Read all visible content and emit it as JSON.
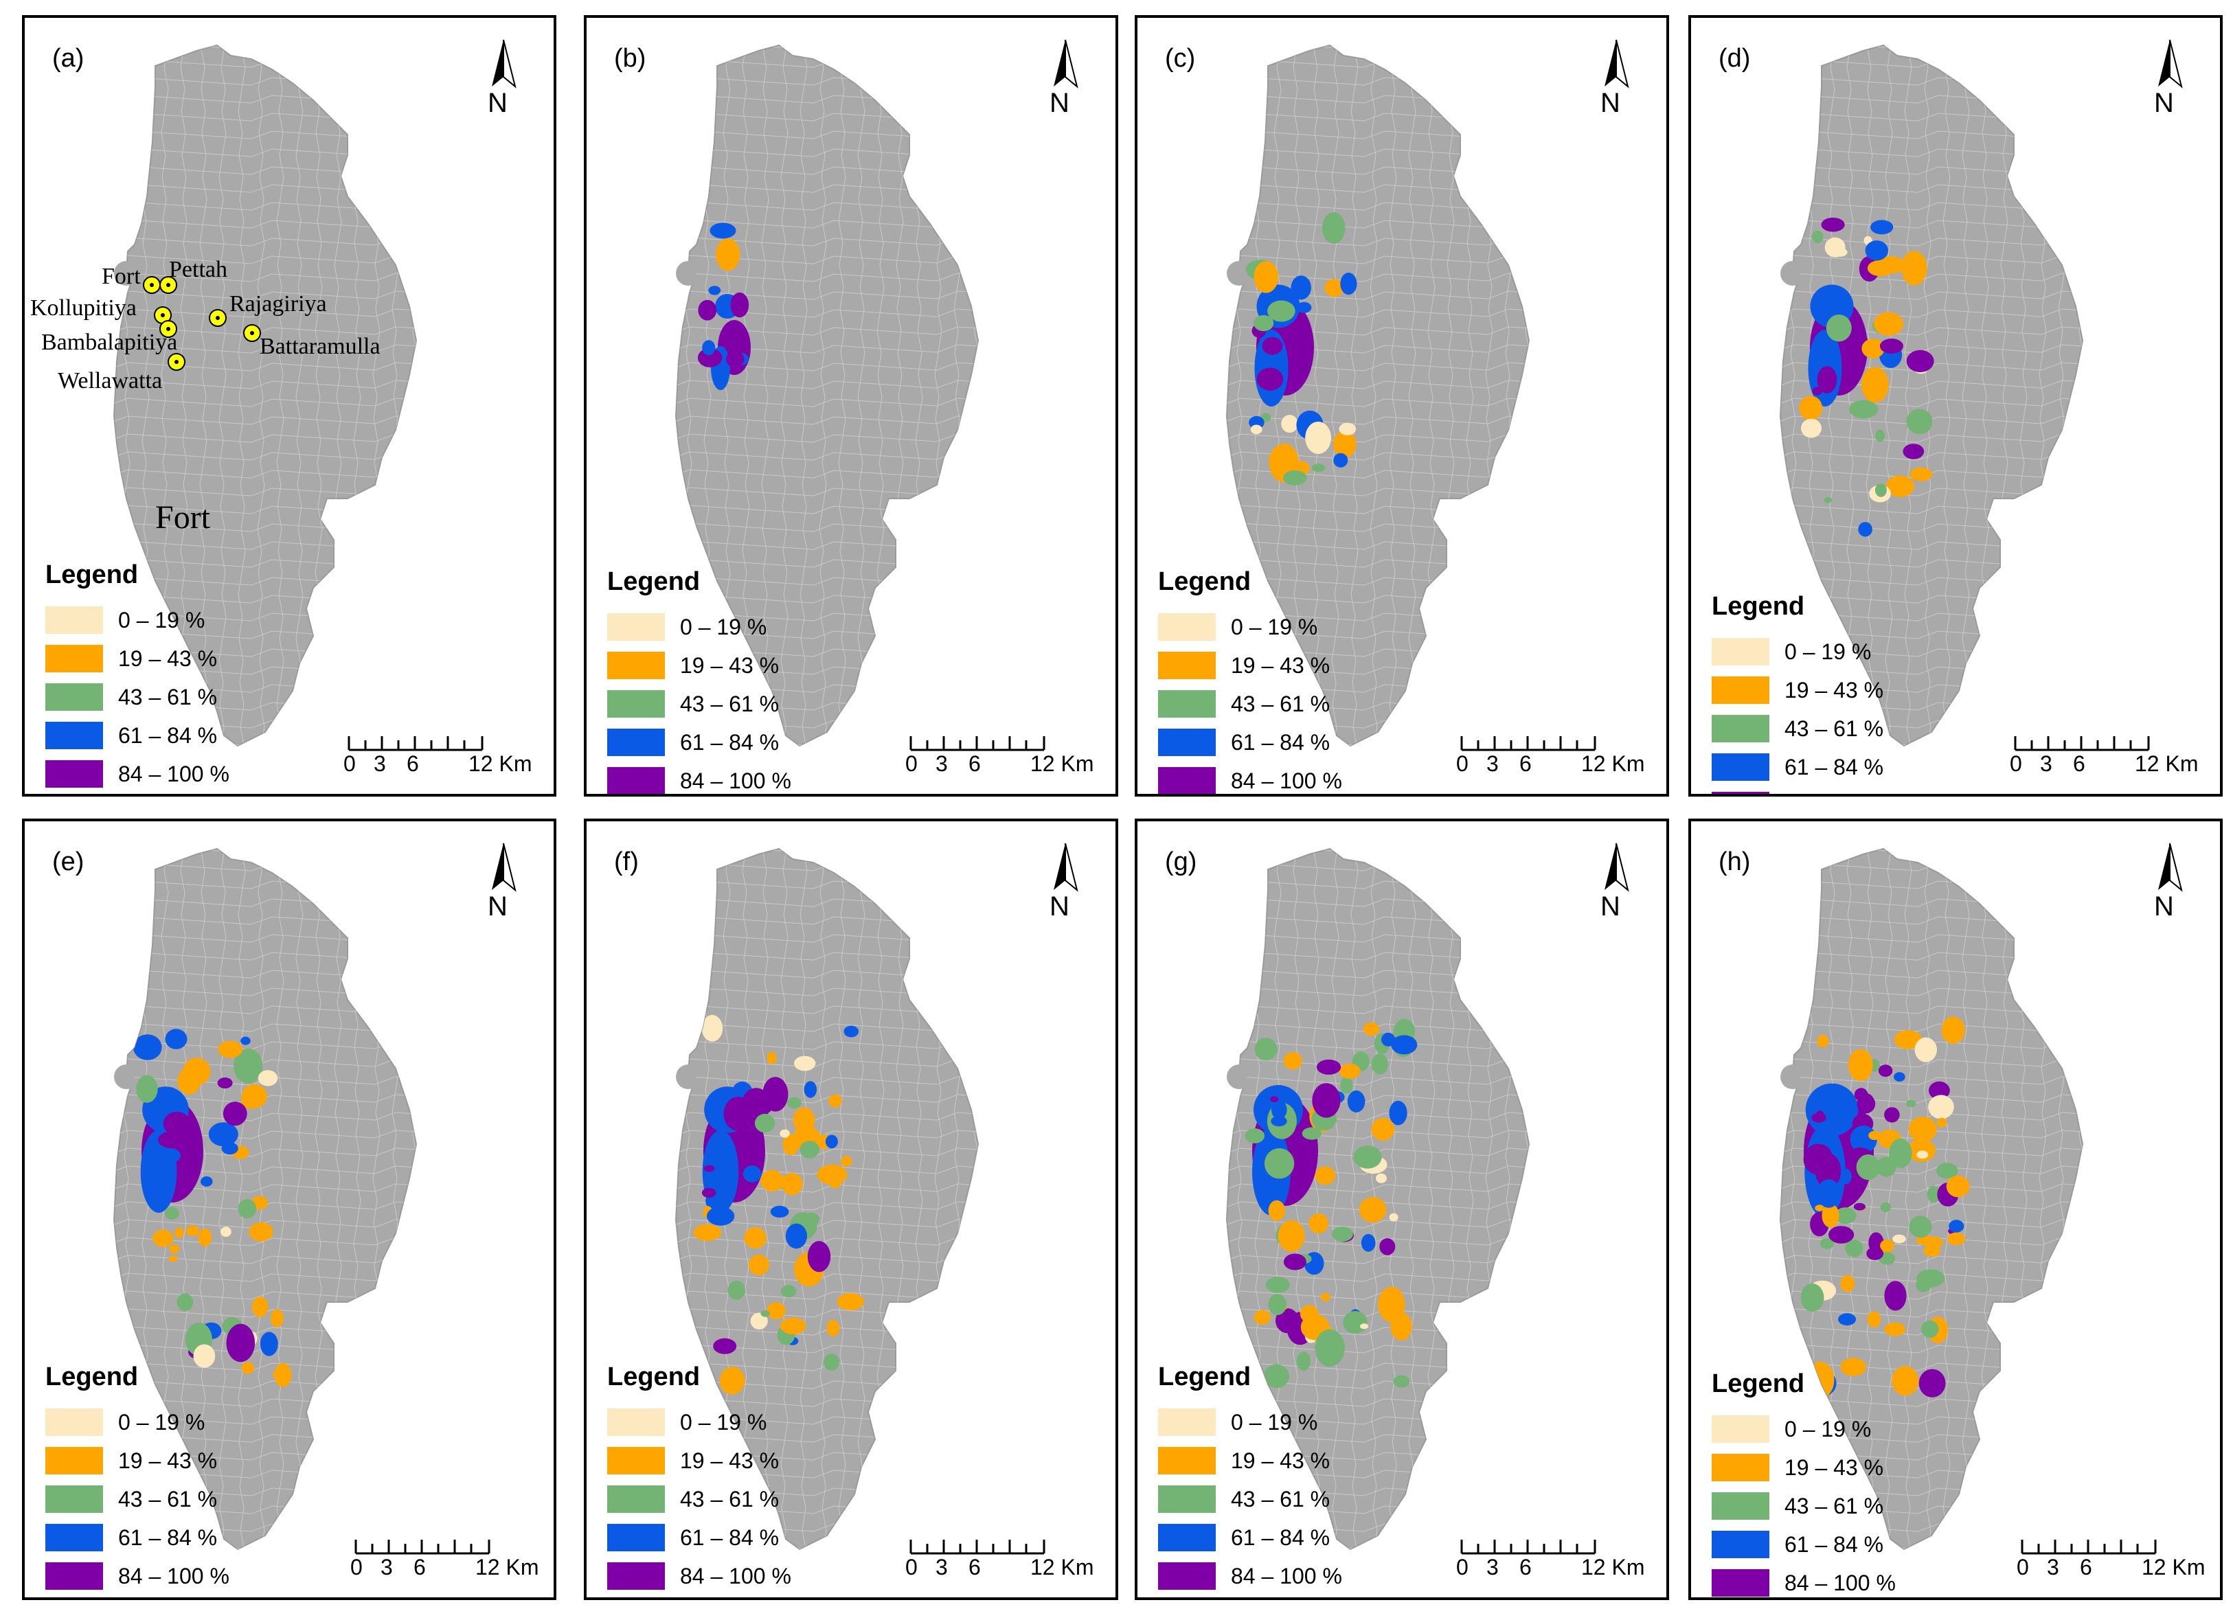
{
  "colors": {
    "land": "#a9a9a9",
    "c0_19": "#fde9c0",
    "c19_43": "#ffa500",
    "c43_61": "#73b373",
    "c61_84": "#0a5ae6",
    "c84_100": "#8000a8",
    "yellow_marker": "#ffff00"
  },
  "legend": {
    "title": "Legend",
    "items": [
      {
        "label": "0 – 19 %",
        "color": "#fde9c0"
      },
      {
        "label": "19 – 43 %",
        "color": "#ffa500"
      },
      {
        "label": "43 – 61 %",
        "color": "#73b373"
      },
      {
        "label": "61 – 84 %",
        "color": "#0a5ae6"
      },
      {
        "label": "84 – 100 %",
        "color": "#8000a8"
      }
    ]
  },
  "scale": {
    "ticks": [
      "0",
      "3",
      "6",
      "12 Km"
    ]
  },
  "north_label": "N",
  "panels": [
    {
      "label": "(a)"
    },
    {
      "label": "(b)"
    },
    {
      "label": "(c)"
    },
    {
      "label": "(d)"
    },
    {
      "label": "(e)"
    },
    {
      "label": "(f)"
    },
    {
      "label": "(g)"
    },
    {
      "label": "(h)"
    }
  ],
  "places": {
    "fort": "Fort",
    "pettah": "Pettah",
    "kollupitiya": "Kollupitiya",
    "rajagiriya": "Rajagiriya",
    "bambalapitiya": "Bambalapitiya",
    "battaramulla": "Battaramulla",
    "wellawatta": "Wellawatta",
    "fort_big": "Fort"
  }
}
